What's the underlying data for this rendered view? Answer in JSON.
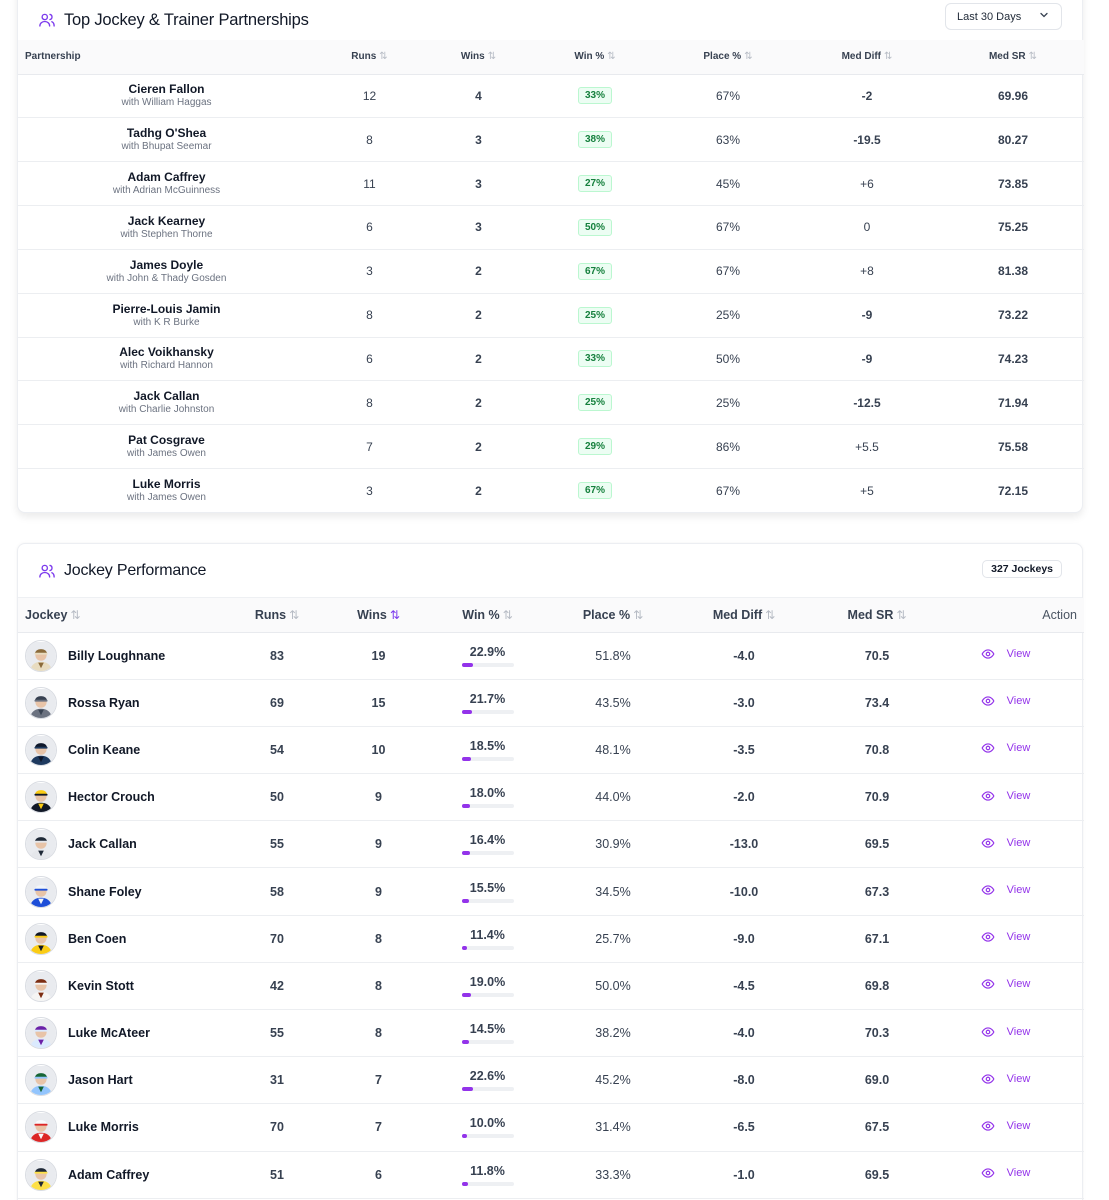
{
  "colors": {
    "accent": "#9333ea",
    "win_green": "#16a34a",
    "neg_red": "#dc2626",
    "sr_indigo": "#4f46e5"
  },
  "partnerships": {
    "title": "Top Jockey & Trainer Partnerships",
    "period_select": "Last 30 Days",
    "icon": "users-icon",
    "columns": {
      "partnership": "Partnership",
      "runs": "Runs",
      "wins": "Wins",
      "win_pct": "Win %",
      "place_pct": "Place %",
      "med_diff": "Med Diff",
      "med_sr": "Med SR"
    },
    "rows": [
      {
        "jockey": "Cieren Fallon",
        "trainer": "with William Haggas",
        "runs": "12",
        "wins": "4",
        "win_pct": "33%",
        "place_pct": "67%",
        "med_diff": "-2",
        "med_sr": "69.96"
      },
      {
        "jockey": "Tadhg O'Shea",
        "trainer": "with Bhupat Seemar",
        "runs": "8",
        "wins": "3",
        "win_pct": "38%",
        "place_pct": "63%",
        "med_diff": "-19.5",
        "med_sr": "80.27"
      },
      {
        "jockey": "Adam Caffrey",
        "trainer": "with Adrian McGuinness",
        "runs": "11",
        "wins": "3",
        "win_pct": "27%",
        "place_pct": "45%",
        "med_diff": "+6",
        "med_sr": "73.85"
      },
      {
        "jockey": "Jack Kearney",
        "trainer": "with Stephen Thorne",
        "runs": "6",
        "wins": "3",
        "win_pct": "50%",
        "place_pct": "67%",
        "med_diff": "0",
        "med_sr": "75.25"
      },
      {
        "jockey": "James Doyle",
        "trainer": "with John & Thady Gosden",
        "runs": "3",
        "wins": "2",
        "win_pct": "67%",
        "place_pct": "67%",
        "med_diff": "+8",
        "med_sr": "81.38"
      },
      {
        "jockey": "Pierre-Louis Jamin",
        "trainer": "with K R Burke",
        "runs": "8",
        "wins": "2",
        "win_pct": "25%",
        "place_pct": "25%",
        "med_diff": "-9",
        "med_sr": "73.22"
      },
      {
        "jockey": "Alec Voikhansky",
        "trainer": "with Richard Hannon",
        "runs": "6",
        "wins": "2",
        "win_pct": "33%",
        "place_pct": "50%",
        "med_diff": "-9",
        "med_sr": "74.23"
      },
      {
        "jockey": "Jack Callan",
        "trainer": "with Charlie Johnston",
        "runs": "8",
        "wins": "2",
        "win_pct": "25%",
        "place_pct": "25%",
        "med_diff": "-12.5",
        "med_sr": "71.94"
      },
      {
        "jockey": "Pat Cosgrave",
        "trainer": "with James Owen",
        "runs": "7",
        "wins": "2",
        "win_pct": "29%",
        "place_pct": "86%",
        "med_diff": "+5.5",
        "med_sr": "75.58"
      },
      {
        "jockey": "Luke Morris",
        "trainer": "with James Owen",
        "runs": "3",
        "wins": "2",
        "win_pct": "67%",
        "place_pct": "67%",
        "med_diff": "+5",
        "med_sr": "72.15"
      }
    ]
  },
  "jockeys": {
    "title": "Jockey Performance",
    "count_badge": "327 Jockeys",
    "icon": "users-icon",
    "columns": {
      "jockey": "Jockey",
      "runs": "Runs",
      "wins": "Wins",
      "win_pct": "Win %",
      "place_pct": "Place %",
      "med_diff": "Med Diff",
      "med_sr": "Med SR",
      "action": "Action"
    },
    "view_label": "View",
    "rows": [
      {
        "name": "Billy Loughnane",
        "runs": "83",
        "wins": "19",
        "win_pct": "22.9%",
        "win_frac": 0.229,
        "place_pct": "51.8%",
        "med_diff": "-4.0",
        "med_sr": "70.5",
        "silk": "#e8dcc0",
        "silk2": "#8b6b3a"
      },
      {
        "name": "Rossa Ryan",
        "runs": "69",
        "wins": "15",
        "win_pct": "21.7%",
        "win_frac": 0.217,
        "place_pct": "43.5%",
        "med_diff": "-3.0",
        "med_sr": "73.4",
        "silk": "#6b7280",
        "silk2": "#374151"
      },
      {
        "name": "Colin Keane",
        "runs": "54",
        "wins": "10",
        "win_pct": "18.5%",
        "win_frac": 0.185,
        "place_pct": "48.1%",
        "med_diff": "-3.5",
        "med_sr": "70.8",
        "silk": "#1e3a5f",
        "silk2": "#0f172a"
      },
      {
        "name": "Hector Crouch",
        "runs": "50",
        "wins": "9",
        "win_pct": "18.0%",
        "win_frac": 0.18,
        "place_pct": "44.0%",
        "med_diff": "-2.0",
        "med_sr": "70.9",
        "silk": "#111827",
        "silk2": "#facc15"
      },
      {
        "name": "Jack Callan",
        "runs": "55",
        "wins": "9",
        "win_pct": "16.4%",
        "win_frac": 0.164,
        "place_pct": "30.9%",
        "med_diff": "-13.0",
        "med_sr": "69.5",
        "silk": "#e5e7eb",
        "silk2": "#1f2937"
      },
      {
        "name": "Shane Foley",
        "runs": "58",
        "wins": "9",
        "win_pct": "15.5%",
        "win_frac": 0.155,
        "place_pct": "34.5%",
        "med_diff": "-10.0",
        "med_sr": "67.3",
        "silk": "#1d4ed8",
        "silk2": "#f1f5f9"
      },
      {
        "name": "Ben Coen",
        "runs": "70",
        "wins": "8",
        "win_pct": "11.4%",
        "win_frac": 0.114,
        "place_pct": "25.7%",
        "med_diff": "-9.0",
        "med_sr": "67.1",
        "silk": "#facc15",
        "silk2": "#111827"
      },
      {
        "name": "Kevin Stott",
        "runs": "42",
        "wins": "8",
        "win_pct": "19.0%",
        "win_frac": 0.19,
        "place_pct": "50.0%",
        "med_diff": "-4.5",
        "med_sr": "69.8",
        "silk": "#f5f5f4",
        "silk2": "#7c2d12"
      },
      {
        "name": "Luke McAteer",
        "runs": "55",
        "wins": "8",
        "win_pct": "14.5%",
        "win_frac": 0.145,
        "place_pct": "38.2%",
        "med_diff": "-4.0",
        "med_sr": "70.3",
        "silk": "#dbeafe",
        "silk2": "#6b21a8"
      },
      {
        "name": "Jason Hart",
        "runs": "31",
        "wins": "7",
        "win_pct": "22.6%",
        "win_frac": 0.226,
        "place_pct": "45.2%",
        "med_diff": "-8.0",
        "med_sr": "69.0",
        "silk": "#93c5fd",
        "silk2": "#166534"
      },
      {
        "name": "Luke Morris",
        "runs": "70",
        "wins": "7",
        "win_pct": "10.0%",
        "win_frac": 0.1,
        "place_pct": "31.4%",
        "med_diff": "-6.5",
        "med_sr": "67.5",
        "silk": "#dc2626",
        "silk2": "#f8fafc"
      },
      {
        "name": "Adam Caffrey",
        "runs": "51",
        "wins": "6",
        "win_pct": "11.8%",
        "win_frac": 0.118,
        "place_pct": "33.3%",
        "med_diff": "-1.0",
        "med_sr": "69.5",
        "silk": "#fde047",
        "silk2": "#1f2937"
      }
    ]
  }
}
